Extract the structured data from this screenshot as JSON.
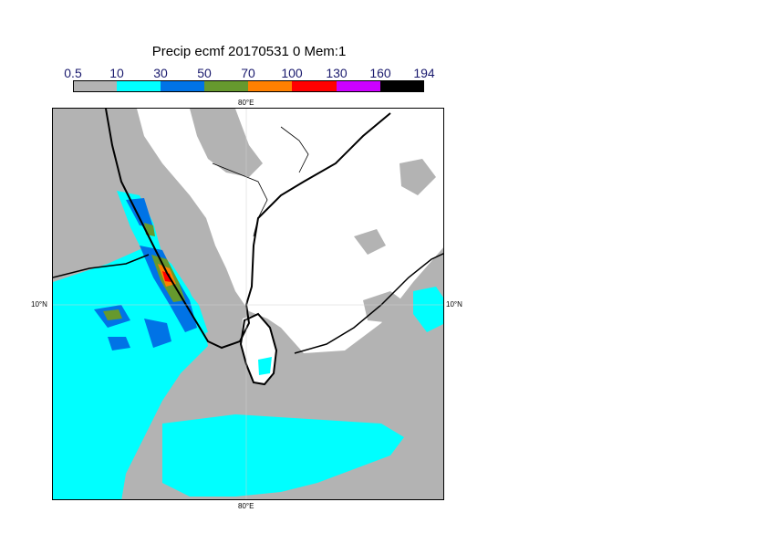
{
  "title": "Precip ecmf 20170531 0 Mem:1",
  "legend": {
    "ticks": [
      "0.5",
      "10",
      "30",
      "50",
      "70",
      "100",
      "130",
      "160",
      "194"
    ],
    "colors": [
      "#b3b3b3",
      "#00ffff",
      "#0073e6",
      "#66992e",
      "#ff8000",
      "#ff0000",
      "#cc00ff",
      "#000000"
    ]
  },
  "axes": {
    "lon_top": "80°E",
    "lon_bottom": "80°E",
    "lat_left": "10°N",
    "lat_right": "10°N"
  },
  "map": {
    "background_color": "#b3b3b3",
    "land_dry_color": "#ffffff",
    "coastline_color": "#000000"
  }
}
